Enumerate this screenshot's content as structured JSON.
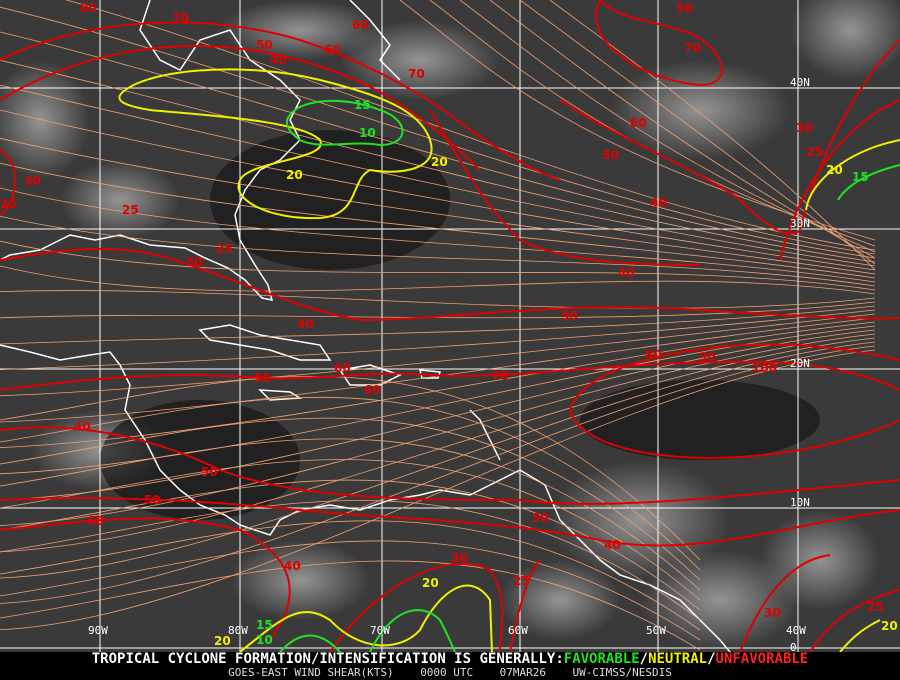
{
  "map": {
    "background_color": "#3a3a3a",
    "grid_color": "#ffffff",
    "coastline_color": "#ffffff",
    "streamline_color": "#f0a070",
    "longitude_labels": [
      "90W",
      "80W",
      "70W",
      "60W",
      "50W",
      "40W"
    ],
    "latitude_labels": [
      "40N",
      "30N",
      "20N",
      "10N",
      "0"
    ],
    "contour_colors": {
      "favorable": "#22e022",
      "neutral": "#f0f000",
      "unfavorable": "#e00000"
    },
    "contour_labels": {
      "unfavorable": [
        "80",
        "70",
        "50",
        "40",
        "60",
        "60",
        "70",
        "50",
        "70",
        "60",
        "50",
        "30",
        "25",
        "40",
        "30",
        "25",
        "25",
        "25",
        "30",
        "40",
        "40",
        "50",
        "50",
        "60",
        "60",
        "70",
        "80",
        "90",
        "100",
        "40",
        "50",
        "50",
        "60",
        "50",
        "40",
        "30",
        "25",
        "40",
        "30",
        "25"
      ],
      "neutral": [
        "20",
        "20",
        "20",
        "20",
        "20",
        "20"
      ],
      "favorable": [
        "15",
        "10",
        "15",
        "15",
        "10"
      ]
    }
  },
  "banner": {
    "prefix": "TROPICAL CYCLONE FORMATION/INTENSIFICATION IS GENERALLY:",
    "favorable": "FAVORABLE",
    "sep1": "/",
    "neutral": "NEUTRAL",
    "sep2": "/",
    "unfavorable": "UNFAVORABLE",
    "product": "GOES-EAST WIND SHEAR(KTS)",
    "time": "0000 UTC",
    "date": "07MAR26",
    "credit": "UW-CIMSS/NESDIS"
  }
}
